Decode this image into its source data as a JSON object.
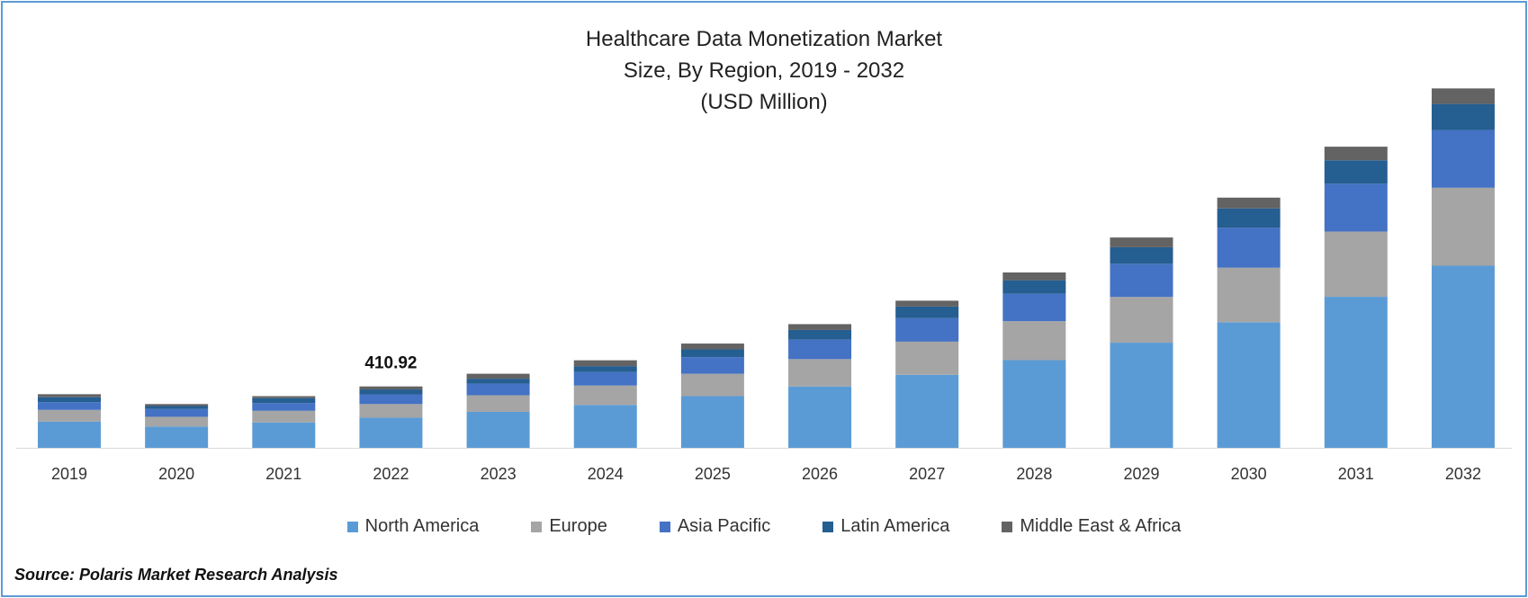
{
  "chart_data": {
    "type": "bar",
    "stacked": true,
    "title": [
      "Healthcare Data Monetization Market",
      "Size, By Region, 2019 - 2032",
      "(USD Million)"
    ],
    "xlabel": "",
    "ylabel": "",
    "categories": [
      "2019",
      "2020",
      "2021",
      "2022",
      "2023",
      "2024",
      "2025",
      "2026",
      "2027",
      "2028",
      "2029",
      "2030",
      "2031",
      "2032"
    ],
    "series": [
      {
        "name": "North America",
        "color": "#5b9bd5",
        "values": [
          176,
          143,
          170,
          202,
          241,
          287,
          346,
          411,
          489,
          587,
          704,
          841,
          1011,
          1219
        ]
      },
      {
        "name": "Europe",
        "color": "#a5a5a5",
        "values": [
          78,
          65,
          78,
          91,
          111,
          130,
          150,
          183,
          222,
          261,
          306,
          365,
          437,
          522
        ]
      },
      {
        "name": "Asia Pacific",
        "color": "#4472c4",
        "values": [
          52,
          52,
          52,
          65,
          78,
          91,
          111,
          130,
          157,
          183,
          222,
          267,
          320,
          385
        ]
      },
      {
        "name": "Latin America",
        "color": "#255e91",
        "values": [
          33,
          20,
          33,
          33,
          33,
          39,
          52,
          65,
          78,
          91,
          111,
          130,
          157,
          176
        ]
      },
      {
        "name": "Middle East & Africa",
        "color": "#636363",
        "values": [
          20,
          13,
          13,
          20,
          33,
          39,
          39,
          39,
          39,
          52,
          65,
          72,
          91,
          104
        ]
      }
    ],
    "annotations": [
      {
        "category": "2022",
        "text": "410.92"
      }
    ],
    "grid": false,
    "legend": "bottom"
  },
  "source": "Source: Polaris Market Research Analysis"
}
